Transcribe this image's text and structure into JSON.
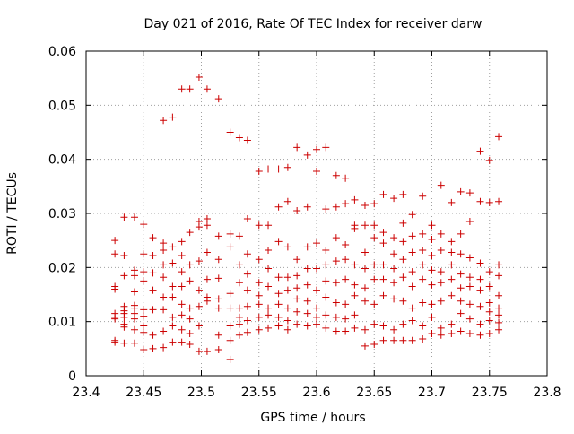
{
  "chart_data": {
    "type": "scatter",
    "title": "Day 021 of 2016, Rate Of TEC Index for receiver darw",
    "xlabel": "GPS time / hours",
    "ylabel": "ROTI / TECUs",
    "xlim": [
      23.4,
      23.8
    ],
    "ylim": [
      0,
      0.06
    ],
    "xticks": [
      "23.4",
      "23.45",
      "23.5",
      "23.55",
      "23.6",
      "23.65",
      "23.7",
      "23.75",
      "23.8"
    ],
    "yticks": [
      "0",
      "0.01",
      "0.02",
      "0.03",
      "0.04",
      "0.05",
      "0.06"
    ],
    "grid": true,
    "marker": "plus",
    "color": "#cc0000",
    "series": [
      {
        "x": [
          23.425,
          23.425,
          23.425,
          23.425,
          23.425,
          23.425,
          23.425,
          23.425,
          23.425,
          23.433,
          23.433,
          23.433,
          23.433,
          23.433,
          23.433,
          23.433,
          23.433,
          23.433,
          23.433,
          23.442,
          23.442,
          23.442,
          23.442,
          23.442,
          23.442,
          23.442,
          23.442,
          23.442,
          23.442,
          23.45,
          23.45,
          23.45,
          23.45,
          23.45,
          23.45,
          23.45,
          23.45,
          23.45,
          23.458,
          23.458,
          23.458,
          23.458,
          23.458,
          23.458,
          23.458,
          23.467,
          23.467,
          23.467,
          23.467,
          23.467,
          23.467,
          23.467,
          23.467,
          23.467,
          23.475,
          23.475,
          23.475,
          23.475,
          23.475,
          23.475,
          23.475,
          23.475,
          23.483,
          23.483,
          23.483,
          23.483,
          23.483,
          23.483,
          23.483,
          23.483,
          23.483,
          23.49,
          23.49,
          23.49,
          23.49,
          23.49,
          23.49,
          23.49,
          23.49,
          23.498,
          23.498,
          23.498,
          23.498,
          23.498,
          23.498,
          23.498,
          23.498,
          23.505,
          23.505,
          23.505,
          23.505,
          23.505,
          23.505,
          23.505,
          23.505,
          23.515,
          23.515,
          23.515,
          23.515,
          23.515,
          23.515,
          23.515,
          23.515,
          23.525,
          23.525,
          23.525,
          23.525,
          23.525,
          23.525,
          23.525,
          23.525,
          23.533,
          23.533,
          23.533,
          23.533,
          23.533,
          23.533,
          23.533,
          23.533,
          23.54,
          23.54,
          23.54,
          23.54,
          23.54,
          23.54,
          23.54,
          23.54,
          23.55,
          23.55,
          23.55,
          23.55,
          23.55,
          23.55,
          23.55,
          23.55,
          23.558,
          23.558,
          23.558,
          23.558,
          23.558,
          23.558,
          23.558,
          23.558,
          23.567,
          23.567,
          23.567,
          23.567,
          23.567,
          23.567,
          23.567,
          23.567,
          23.575,
          23.575,
          23.575,
          23.575,
          23.575,
          23.575,
          23.575,
          23.575,
          23.583,
          23.583,
          23.583,
          23.583,
          23.583,
          23.583,
          23.583,
          23.583,
          23.592,
          23.592,
          23.592,
          23.592,
          23.592,
          23.592,
          23.592,
          23.592,
          23.6,
          23.6,
          23.6,
          23.6,
          23.6,
          23.6,
          23.6,
          23.6,
          23.608,
          23.608,
          23.608,
          23.608,
          23.608,
          23.608,
          23.608,
          23.608,
          23.617,
          23.617,
          23.617,
          23.617,
          23.617,
          23.617,
          23.617,
          23.617,
          23.625,
          23.625,
          23.625,
          23.625,
          23.625,
          23.625,
          23.625,
          23.625,
          23.633,
          23.633,
          23.633,
          23.633,
          23.633,
          23.633,
          23.633,
          23.633,
          23.642,
          23.642,
          23.642,
          23.642,
          23.642,
          23.642,
          23.642,
          23.642,
          23.65,
          23.65,
          23.65,
          23.65,
          23.65,
          23.65,
          23.65,
          23.65,
          23.658,
          23.658,
          23.658,
          23.658,
          23.658,
          23.658,
          23.658,
          23.658,
          23.667,
          23.667,
          23.667,
          23.667,
          23.667,
          23.667,
          23.667,
          23.667,
          23.675,
          23.675,
          23.675,
          23.675,
          23.675,
          23.675,
          23.675,
          23.675,
          23.683,
          23.683,
          23.683,
          23.683,
          23.683,
          23.683,
          23.683,
          23.683,
          23.692,
          23.692,
          23.692,
          23.692,
          23.692,
          23.692,
          23.692,
          23.692,
          23.7,
          23.7,
          23.7,
          23.7,
          23.7,
          23.7,
          23.7,
          23.7,
          23.708,
          23.708,
          23.708,
          23.708,
          23.708,
          23.708,
          23.708,
          23.708,
          23.717,
          23.717,
          23.717,
          23.717,
          23.717,
          23.717,
          23.717,
          23.717,
          23.725,
          23.725,
          23.725,
          23.725,
          23.725,
          23.725,
          23.725,
          23.725,
          23.733,
          23.733,
          23.733,
          23.733,
          23.733,
          23.733,
          23.733,
          23.733,
          23.742,
          23.742,
          23.742,
          23.742,
          23.742,
          23.742,
          23.742,
          23.742,
          23.75,
          23.75,
          23.75,
          23.75,
          23.75,
          23.75,
          23.75,
          23.75,
          23.758,
          23.758,
          23.758,
          23.758,
          23.758,
          23.758,
          23.758,
          23.758,
          23.758
        ],
        "y": [
          0.0065,
          0.0105,
          0.0115,
          0.016,
          0.0165,
          0.0225,
          0.025,
          0.0062,
          0.0108,
          0.006,
          0.009,
          0.0108,
          0.012,
          0.0128,
          0.0185,
          0.0222,
          0.0293,
          0.0095,
          0.0115,
          0.006,
          0.0085,
          0.0105,
          0.0125,
          0.013,
          0.0155,
          0.0185,
          0.0195,
          0.0293,
          0.0115,
          0.0048,
          0.008,
          0.0092,
          0.011,
          0.0122,
          0.0175,
          0.0192,
          0.0225,
          0.028,
          0.005,
          0.0075,
          0.0122,
          0.0158,
          0.019,
          0.0222,
          0.0255,
          0.0052,
          0.0082,
          0.0122,
          0.0145,
          0.0182,
          0.0205,
          0.0232,
          0.0245,
          0.0472,
          0.0062,
          0.0092,
          0.0108,
          0.0145,
          0.0165,
          0.0208,
          0.0238,
          0.0478,
          0.0062,
          0.0085,
          0.0112,
          0.0132,
          0.0165,
          0.0192,
          0.0222,
          0.0248,
          0.053,
          0.0058,
          0.0078,
          0.0105,
          0.0125,
          0.0175,
          0.0205,
          0.0265,
          0.053,
          0.0045,
          0.0092,
          0.0128,
          0.0158,
          0.0212,
          0.0275,
          0.0285,
          0.0552,
          0.0045,
          0.0138,
          0.0145,
          0.0178,
          0.0228,
          0.0278,
          0.029,
          0.053,
          0.0048,
          0.0075,
          0.0125,
          0.0142,
          0.018,
          0.0215,
          0.0258,
          0.0512,
          0.003,
          0.0065,
          0.0092,
          0.0125,
          0.0152,
          0.0238,
          0.0262,
          0.045,
          0.0075,
          0.0095,
          0.0108,
          0.0125,
          0.0172,
          0.0205,
          0.0258,
          0.044,
          0.008,
          0.0102,
          0.0128,
          0.0158,
          0.0188,
          0.0225,
          0.029,
          0.0435,
          0.0085,
          0.0108,
          0.0132,
          0.0148,
          0.0172,
          0.0215,
          0.0278,
          0.0378,
          0.0088,
          0.0112,
          0.0125,
          0.0165,
          0.0198,
          0.0232,
          0.0278,
          0.0382,
          0.0092,
          0.0108,
          0.0132,
          0.0152,
          0.0182,
          0.0248,
          0.0312,
          0.0382,
          0.0085,
          0.0102,
          0.0125,
          0.0158,
          0.0182,
          0.0238,
          0.0322,
          0.0385,
          0.0095,
          0.0118,
          0.0142,
          0.0162,
          0.0185,
          0.0215,
          0.0305,
          0.0422,
          0.0092,
          0.0115,
          0.0138,
          0.0168,
          0.0198,
          0.0238,
          0.0312,
          0.0408,
          0.0095,
          0.0108,
          0.0125,
          0.0158,
          0.0198,
          0.0245,
          0.0378,
          0.0418,
          0.0088,
          0.0112,
          0.0145,
          0.0175,
          0.0205,
          0.0232,
          0.0308,
          0.0422,
          0.0082,
          0.0108,
          0.0135,
          0.0172,
          0.0212,
          0.0255,
          0.0312,
          0.037,
          0.0082,
          0.0105,
          0.0132,
          0.0178,
          0.0215,
          0.0242,
          0.0318,
          0.0365,
          0.0088,
          0.0112,
          0.0148,
          0.0168,
          0.0205,
          0.0272,
          0.0325,
          0.0278,
          0.0055,
          0.0085,
          0.0138,
          0.0162,
          0.0198,
          0.0228,
          0.0278,
          0.0315,
          0.0058,
          0.0095,
          0.0132,
          0.0178,
          0.0205,
          0.0255,
          0.0278,
          0.0318,
          0.0065,
          0.0092,
          0.0148,
          0.0178,
          0.0205,
          0.0245,
          0.0265,
          0.0335,
          0.0065,
          0.0085,
          0.0142,
          0.0172,
          0.0198,
          0.0225,
          0.0255,
          0.0328,
          0.0065,
          0.0095,
          0.0138,
          0.0182,
          0.0215,
          0.0248,
          0.0282,
          0.0335,
          0.0065,
          0.0102,
          0.0125,
          0.0165,
          0.0192,
          0.0228,
          0.0258,
          0.0298,
          0.0068,
          0.0092,
          0.0135,
          0.0178,
          0.0205,
          0.0232,
          0.0262,
          0.0332,
          0.0078,
          0.0108,
          0.0132,
          0.0168,
          0.0195,
          0.0222,
          0.0252,
          0.0278,
          0.0075,
          0.0088,
          0.0138,
          0.0172,
          0.0192,
          0.0232,
          0.0262,
          0.0352,
          0.0078,
          0.0095,
          0.0148,
          0.0178,
          0.0205,
          0.0228,
          0.0248,
          0.032,
          0.0082,
          0.0115,
          0.0138,
          0.0162,
          0.0188,
          0.0225,
          0.0262,
          0.034,
          0.0078,
          0.0105,
          0.0132,
          0.0165,
          0.0182,
          0.0218,
          0.0285,
          0.0338,
          0.0075,
          0.0095,
          0.0128,
          0.0158,
          0.0178,
          0.0208,
          0.0322,
          0.0415,
          0.0078,
          0.0102,
          0.0118,
          0.0135,
          0.0165,
          0.0192,
          0.032,
          0.0398,
          0.0085,
          0.0112,
          0.0125,
          0.0148,
          0.0185,
          0.0205,
          0.0322,
          0.0442,
          0.0098
        ]
      }
    ]
  }
}
